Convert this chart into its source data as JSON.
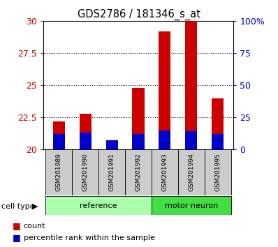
{
  "title": "GDS2786 / 181346_s_at",
  "samples": [
    "GSM201989",
    "GSM201990",
    "GSM201991",
    "GSM201992",
    "GSM201993",
    "GSM201994",
    "GSM201995"
  ],
  "count_values": [
    22.2,
    22.8,
    20.2,
    24.8,
    29.2,
    30.0,
    24.0
  ],
  "percentile_values": [
    21.2,
    21.3,
    20.7,
    21.2,
    21.5,
    21.4,
    21.2
  ],
  "y_min": 20,
  "y_max": 30,
  "y_ticks": [
    20,
    22.5,
    25,
    27.5,
    30
  ],
  "y2_ticks_labels": [
    "0",
    "25",
    "50",
    "75",
    "100%"
  ],
  "y2_ticks_vals": [
    0,
    25,
    50,
    75,
    100
  ],
  "bar_color_red": "#cc0000",
  "bar_color_blue": "#0000cc",
  "bar_width": 0.45,
  "ref_color": "#aaffaa",
  "motor_color": "#44dd44",
  "tick_label_color_left": "#cc0000",
  "tick_label_color_right": "#0000cc",
  "baseline": 20,
  "ref_count": 4,
  "motor_count": 3
}
